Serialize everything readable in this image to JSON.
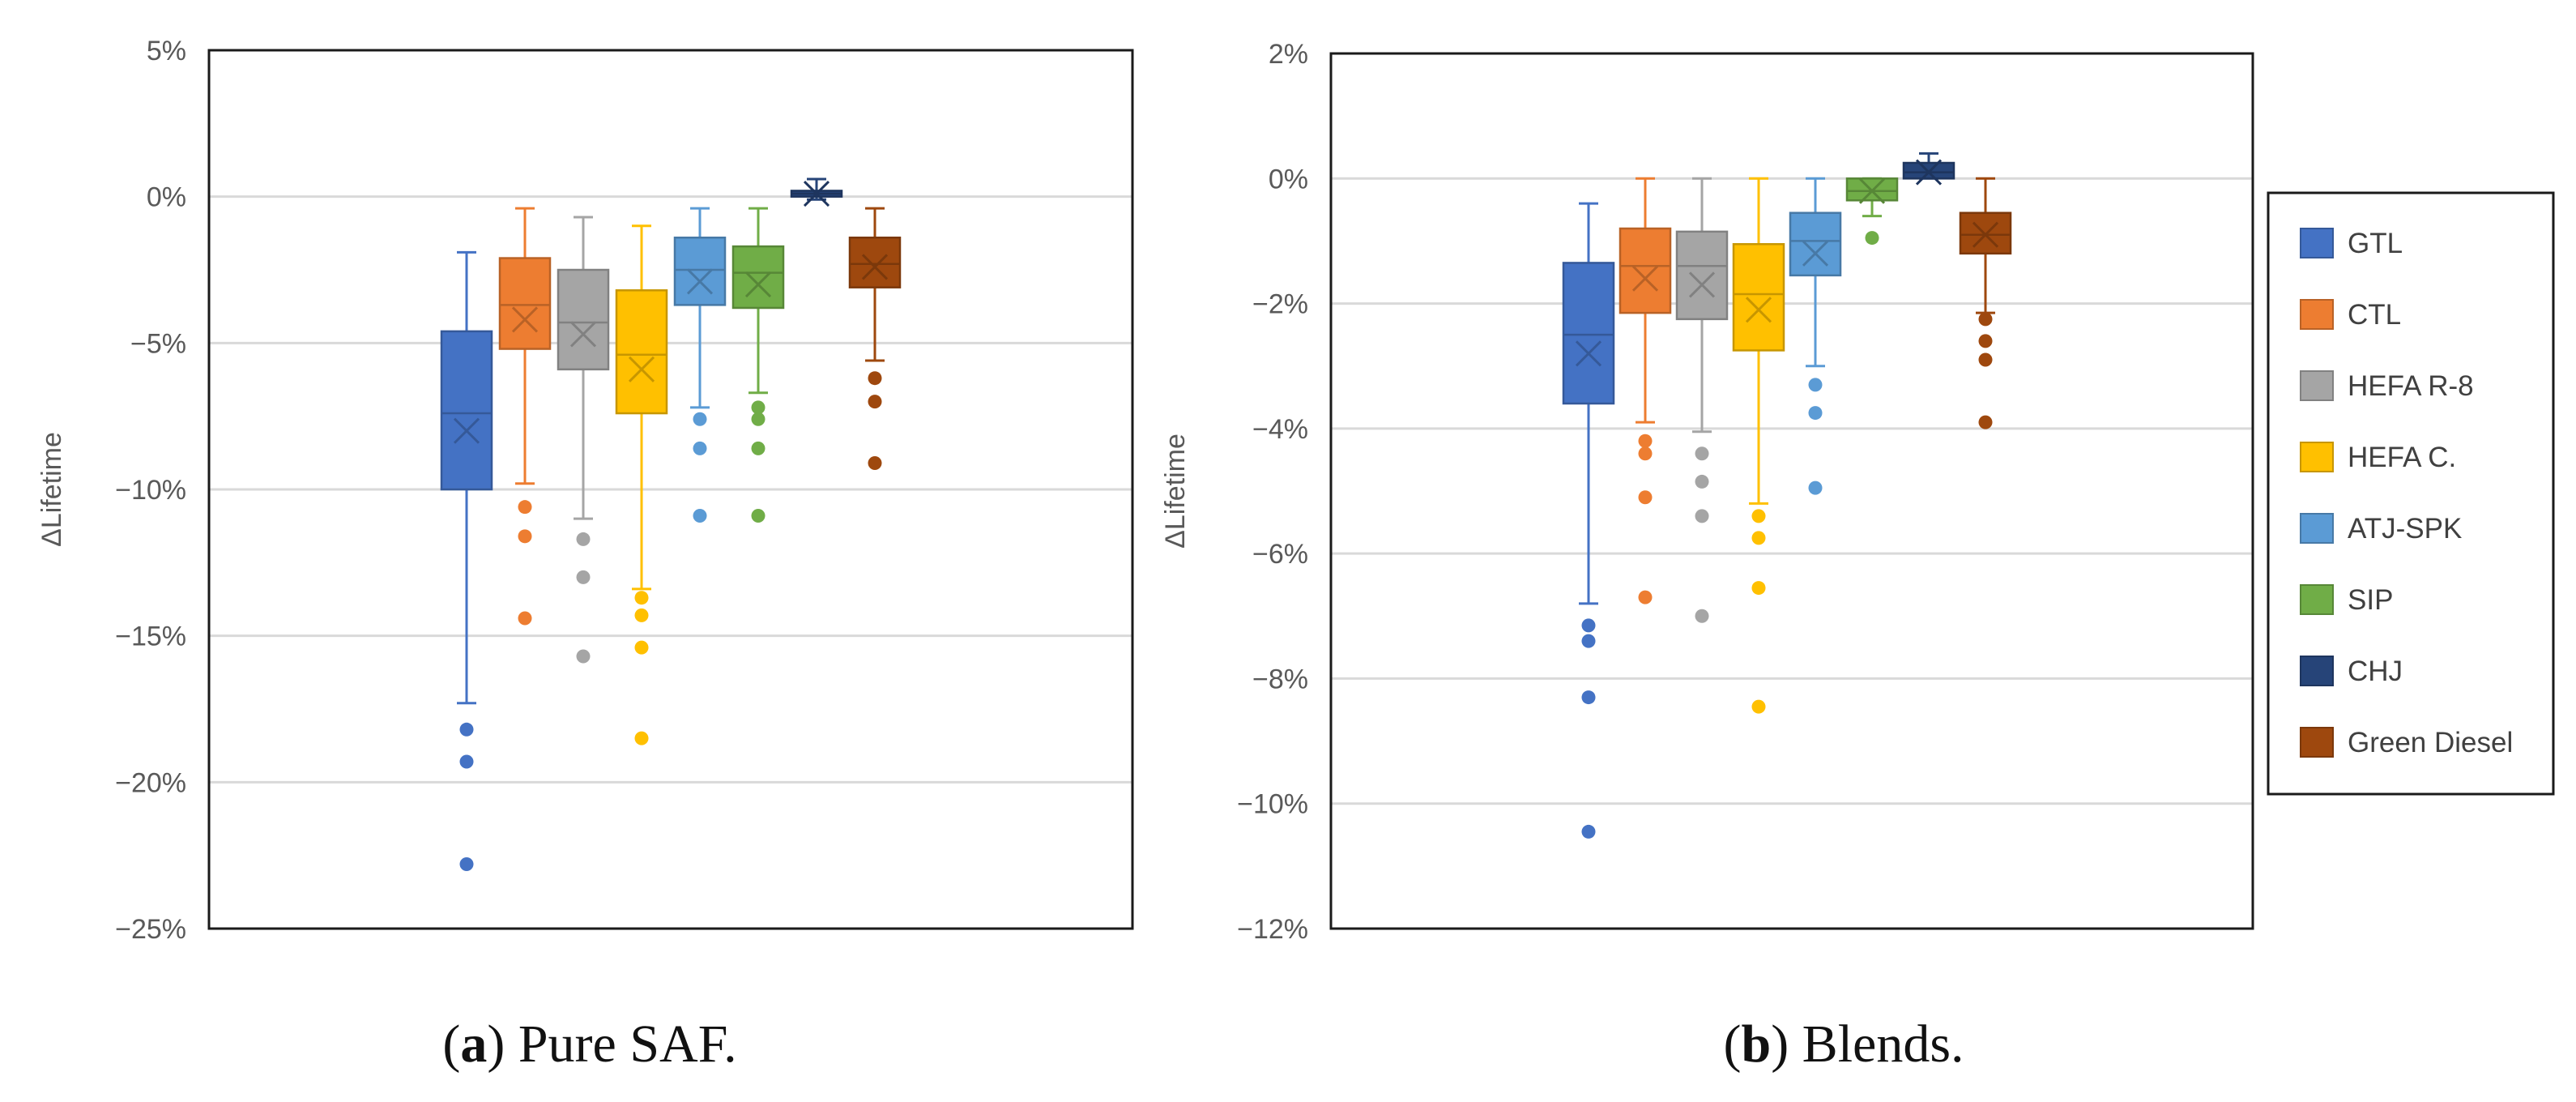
{
  "chart_data": [
    {
      "type": "box",
      "panel": "a",
      "caption_letter": "a",
      "caption_text": "Pure SAF.",
      "ylabel": "ΔLifetime",
      "ylim": [
        -25,
        5
      ],
      "yticks": [
        5,
        0,
        -5,
        -10,
        -15,
        -20,
        -25
      ],
      "ytick_labels": [
        "5%",
        "0%",
        "−5%",
        "−10%",
        "−15%",
        "−20%",
        "−25%"
      ],
      "grid": true,
      "series": [
        {
          "name": "GTL",
          "color": "#4472C4",
          "min": -17.3,
          "q1": -10.0,
          "median": -7.4,
          "mean": -8.0,
          "q3": -4.6,
          "max": -1.9,
          "outliers": [
            -18.2,
            -19.3,
            -22.8
          ]
        },
        {
          "name": "CTL",
          "color": "#ED7D31",
          "min": -9.8,
          "q1": -5.2,
          "median": -3.7,
          "mean": -4.2,
          "q3": -2.1,
          "max": -0.4,
          "outliers": [
            -10.6,
            -11.6,
            -14.4
          ]
        },
        {
          "name": "HEFA R-8",
          "color": "#A5A5A5",
          "min": -11.0,
          "q1": -5.9,
          "median": -4.3,
          "mean": -4.7,
          "q3": -2.5,
          "max": -0.7,
          "outliers": [
            -11.7,
            -13.0,
            -15.7
          ]
        },
        {
          "name": "HEFA C.",
          "color": "#FFC000",
          "min": -13.4,
          "q1": -7.4,
          "median": -5.4,
          "mean": -5.9,
          "q3": -3.2,
          "max": -1.0,
          "outliers": [
            -13.7,
            -14.3,
            -15.4,
            -18.5
          ]
        },
        {
          "name": "ATJ-SPK",
          "color": "#5B9BD5",
          "min": -7.2,
          "q1": -3.7,
          "median": -2.5,
          "mean": -2.9,
          "q3": -1.4,
          "max": -0.4,
          "outliers": [
            -7.6,
            -8.6,
            -10.9
          ]
        },
        {
          "name": "SIP",
          "color": "#70AD47",
          "min": -6.7,
          "q1": -3.8,
          "median": -2.6,
          "mean": -3.0,
          "q3": -1.7,
          "max": -0.4,
          "outliers": [
            -7.2,
            -7.6,
            -8.6,
            -10.9
          ]
        },
        {
          "name": "CHJ",
          "color": "#264478",
          "min": -0.1,
          "q1": 0.0,
          "median": 0.1,
          "mean": 0.1,
          "q3": 0.2,
          "max": 0.6,
          "outliers": []
        },
        {
          "name": "Green Diesel",
          "color": "#9E480E",
          "min": -5.6,
          "q1": -3.1,
          "median": -2.3,
          "mean": -2.4,
          "q3": -1.4,
          "max": -0.4,
          "outliers": [
            -6.2,
            -7.0,
            -9.1
          ]
        }
      ]
    },
    {
      "type": "box",
      "panel": "b",
      "caption_letter": "b",
      "caption_text": "Blends.",
      "ylabel": "ΔLifetime",
      "ylim": [
        -12,
        2
      ],
      "yticks": [
        2,
        0,
        -2,
        -4,
        -6,
        -8,
        -10,
        -12
      ],
      "ytick_labels": [
        "2%",
        "0%",
        "−2%",
        "−4%",
        "−6%",
        "−8%",
        "−10%",
        "−12%"
      ],
      "grid": true,
      "legend": "right",
      "series": [
        {
          "name": "GTL",
          "color": "#4472C4",
          "min": -6.8,
          "q1": -3.6,
          "median": -2.5,
          "mean": -2.8,
          "q3": -1.35,
          "max": -0.4,
          "outliers": [
            -7.15,
            -7.4,
            -8.3,
            -10.45
          ]
        },
        {
          "name": "CTL",
          "color": "#ED7D31",
          "min": -3.9,
          "q1": -2.15,
          "median": -1.4,
          "mean": -1.6,
          "q3": -0.8,
          "max": 0.0,
          "outliers": [
            -4.2,
            -4.4,
            -5.1,
            -6.7
          ]
        },
        {
          "name": "HEFA R-8",
          "color": "#A5A5A5",
          "min": -4.05,
          "q1": -2.25,
          "median": -1.4,
          "mean": -1.7,
          "q3": -0.85,
          "max": 0.0,
          "outliers": [
            -4.4,
            -4.85,
            -5.4,
            -7.0
          ]
        },
        {
          "name": "HEFA C.",
          "color": "#FFC000",
          "min": -5.2,
          "q1": -2.75,
          "median": -1.85,
          "mean": -2.1,
          "q3": -1.05,
          "max": 0.0,
          "outliers": [
            -5.4,
            -5.75,
            -6.55,
            -8.45
          ]
        },
        {
          "name": "ATJ-SPK",
          "color": "#5B9BD5",
          "min": -3.0,
          "q1": -1.55,
          "median": -1.0,
          "mean": -1.2,
          "q3": -0.55,
          "max": 0.0,
          "outliers": [
            -3.3,
            -3.75,
            -4.95
          ]
        },
        {
          "name": "SIP",
          "color": "#70AD47",
          "min": -0.6,
          "q1": -0.35,
          "median": -0.2,
          "mean": -0.2,
          "q3": 0.0,
          "max": 0.0,
          "outliers": [
            -0.95
          ]
        },
        {
          "name": "CHJ",
          "color": "#264478",
          "min": 0.0,
          "q1": 0.0,
          "median": 0.1,
          "mean": 0.1,
          "q3": 0.25,
          "max": 0.4,
          "outliers": []
        },
        {
          "name": "Green Diesel",
          "color": "#9E480E",
          "min": -2.15,
          "q1": -1.2,
          "median": -0.9,
          "mean": -0.9,
          "q3": -0.55,
          "max": 0.0,
          "outliers": [
            -2.25,
            -2.6,
            -2.9,
            -3.9
          ]
        }
      ]
    }
  ]
}
